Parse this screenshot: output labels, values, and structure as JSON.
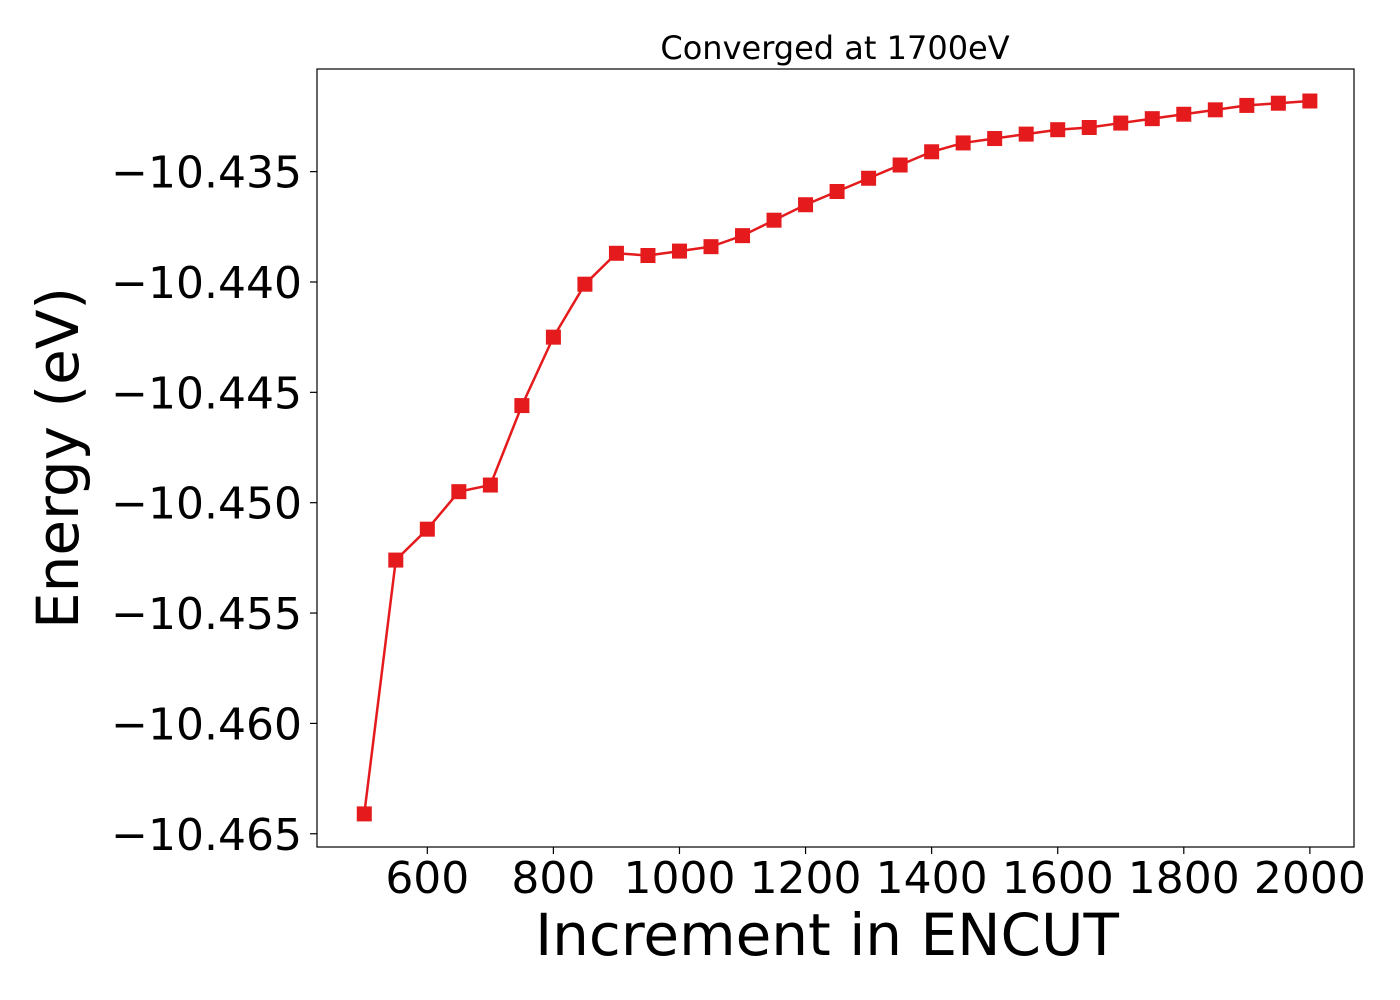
{
  "chart_data": {
    "type": "line",
    "title": "Converged at 1700eV",
    "xlabel": "Increment in ENCUT",
    "ylabel": "Energy (eV)",
    "xlim": [
      425,
      2070
    ],
    "ylim": [
      -10.4656,
      -10.43035
    ],
    "x_ticks": [
      600,
      800,
      1000,
      1200,
      1400,
      1600,
      1800,
      2000
    ],
    "x_tick_labels": [
      "600",
      "800",
      "1000",
      "1200",
      "1400",
      "1600",
      "1800",
      "2000"
    ],
    "y_ticks": [
      -10.435,
      -10.44,
      -10.445,
      -10.45,
      -10.455,
      -10.46,
      -10.465
    ],
    "y_tick_labels": [
      "−10.435",
      "−10.440",
      "−10.445",
      "−10.450",
      "−10.455",
      "−10.460",
      "−10.465"
    ],
    "grid": false,
    "series": [
      {
        "color": "#e41a1c",
        "marker": "square",
        "x": [
          500,
          550,
          600,
          650,
          700,
          750,
          800,
          850,
          900,
          950,
          1000,
          1050,
          1100,
          1150,
          1200,
          1250,
          1300,
          1350,
          1400,
          1450,
          1500,
          1550,
          1600,
          1650,
          1700,
          1750,
          1800,
          1850,
          1900,
          1950,
          2000
        ],
        "y": [
          -10.4641,
          -10.4526,
          -10.4512,
          -10.4495,
          -10.4492,
          -10.4456,
          -10.4425,
          -10.4401,
          -10.4387,
          -10.4388,
          -10.4386,
          -10.4384,
          -10.4379,
          -10.4372,
          -10.4365,
          -10.4359,
          -10.4353,
          -10.4347,
          -10.4341,
          -10.4337,
          -10.4335,
          -10.4333,
          -10.4331,
          -10.433,
          -10.4328,
          -10.4326,
          -10.4324,
          -10.4322,
          -10.432,
          -10.4319,
          -10.4318
        ]
      }
    ]
  }
}
